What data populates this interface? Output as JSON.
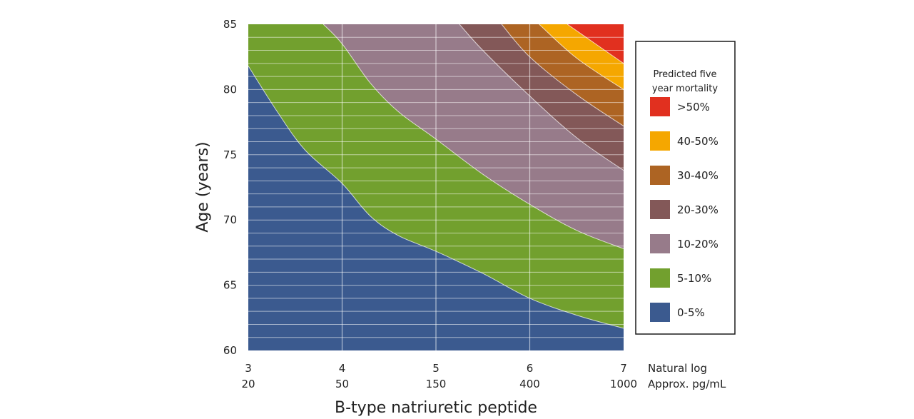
{
  "chart_data": {
    "type": "area",
    "title": "",
    "xlabel": "B-type natriuretic peptide",
    "ylabel": "Age (years)",
    "xlim": [
      3,
      7
    ],
    "ylim": [
      60,
      85
    ],
    "x_ticks": [
      {
        "value": 3,
        "label": "3",
        "label2": "20"
      },
      {
        "value": 4,
        "label": "4",
        "label2": "50"
      },
      {
        "value": 5,
        "label": "5",
        "label2": "150"
      },
      {
        "value": 6,
        "label": "6",
        "label2": "400"
      },
      {
        "value": 7,
        "label": "7",
        "label2": "1000"
      }
    ],
    "x_tick_row_labels": [
      "Natural log",
      "Approx. pg/mL"
    ],
    "y_ticks": [
      60,
      65,
      70,
      75,
      80,
      85
    ],
    "grid": {
      "vertical": true,
      "horizontal_minor_step": 1
    },
    "legend": {
      "title_lines": [
        "Predicted five",
        "year mortality"
      ],
      "placement": "right",
      "items": [
        {
          "label": ">50%",
          "color": "#e1301f"
        },
        {
          "label": "40-50%",
          "color": "#f5a700"
        },
        {
          "label": "30-40%",
          "color": "#ad6423"
        },
        {
          "label": "20-30%",
          "color": "#835858"
        },
        {
          "label": "10-20%",
          "color": "#977b8a"
        },
        {
          "label": "5-10%",
          "color": "#72a02e"
        },
        {
          "label": "0-5%",
          "color": "#3b5a8f"
        }
      ]
    },
    "region_colors": [
      "#3b5a8f",
      "#72a02e",
      "#977b8a",
      "#835858",
      "#ad6423",
      "#f5a700",
      "#e1301f"
    ],
    "boundaries": [
      {
        "between": "0-5% / 5-10%",
        "x": [
          3,
          3.3,
          3.6,
          4,
          4.3,
          4.6,
          5,
          5.5,
          6,
          6.5,
          7
        ],
        "y": [
          81.8,
          78.4,
          75.4,
          72.8,
          70.3,
          68.8,
          67.6,
          65.9,
          64.0,
          62.7,
          61.7
        ]
      },
      {
        "between": "5-10% / 10-20%",
        "x": [
          3.8,
          4.0,
          4.3,
          4.6,
          5,
          5.5,
          6,
          6.5,
          7
        ],
        "y": [
          85,
          83.5,
          80.5,
          78.3,
          76.2,
          73.5,
          71.2,
          69.2,
          67.8
        ]
      },
      {
        "between": "10-20% / 20-30%",
        "x": [
          5.25,
          5.5,
          6,
          6.5,
          7
        ],
        "y": [
          85,
          83.0,
          79.5,
          76.3,
          73.8
        ]
      },
      {
        "between": "20-30% / 30-40%",
        "x": [
          5.7,
          6,
          6.5,
          7
        ],
        "y": [
          85,
          82.5,
          79.6,
          77.2
        ]
      },
      {
        "between": "30-40% / 40-50%",
        "x": [
          6.1,
          6.5,
          7
        ],
        "y": [
          85,
          82.4,
          80.0
        ]
      },
      {
        "between": "40-50% / >50%",
        "x": [
          6.4,
          6.7,
          7
        ],
        "y": [
          85,
          83.5,
          82.0
        ]
      }
    ]
  }
}
